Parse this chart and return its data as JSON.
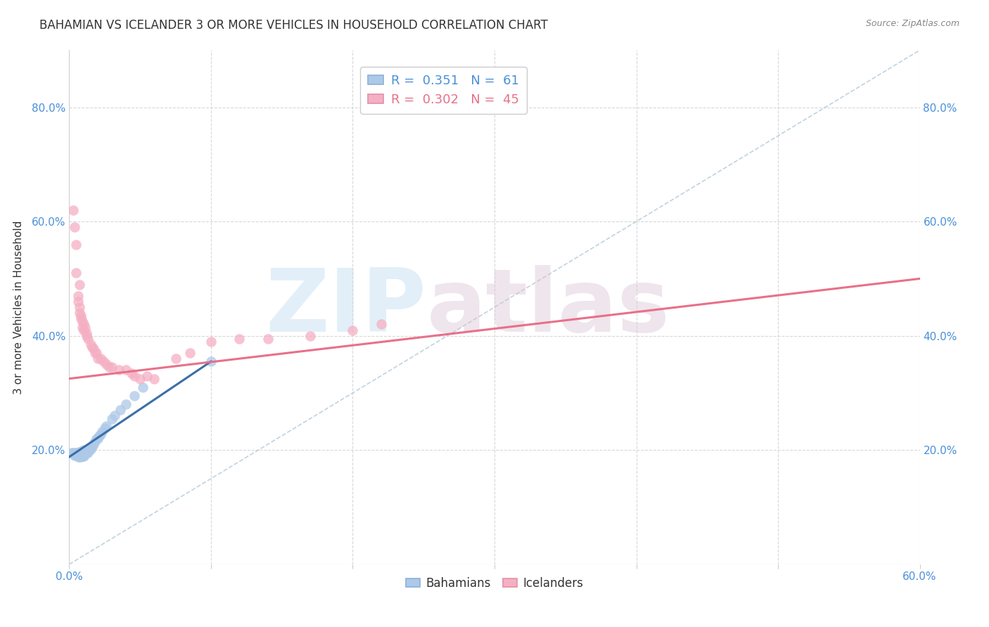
{
  "title": "BAHAMIAN VS ICELANDER 3 OR MORE VEHICLES IN HOUSEHOLD CORRELATION CHART",
  "source_text": "Source: ZipAtlas.com",
  "ylabel": "3 or more Vehicles in Household",
  "xlabel": "",
  "xlim": [
    0.0,
    0.6
  ],
  "ylim": [
    0.0,
    0.9
  ],
  "xtick_labels": [
    "0.0%",
    "",
    "",
    "",
    "",
    "",
    "60.0%"
  ],
  "xtick_values": [
    0.0,
    0.1,
    0.2,
    0.3,
    0.4,
    0.5,
    0.6
  ],
  "ytick_labels": [
    "20.0%",
    "40.0%",
    "60.0%",
    "80.0%"
  ],
  "ytick_values": [
    0.2,
    0.4,
    0.6,
    0.8
  ],
  "legend_entries": [
    {
      "label": "R =  0.351   N =  61",
      "color": "#adc9e8"
    },
    {
      "label": "R =  0.302   N =  45",
      "color": "#f5afc3"
    }
  ],
  "bahamians_color": "#adc9e8",
  "icelanders_color": "#f5afc3",
  "bahamians_edge_color": "#adc9e8",
  "icelanders_edge_color": "#f5afc3",
  "bahamians_line_color": "#3a6fa8",
  "icelanders_line_color": "#e8708a",
  "diagonal_color": "#b0c8d8",
  "background_color": "#ffffff",
  "grid_color": "#d8d8d8",
  "title_color": "#333333",
  "watermark_zip_color": "#c0ddf0",
  "watermark_atlas_color": "#d8c0d0",
  "bahamians_x": [
    0.002,
    0.003,
    0.004,
    0.004,
    0.005,
    0.005,
    0.005,
    0.005,
    0.006,
    0.006,
    0.006,
    0.006,
    0.007,
    0.007,
    0.007,
    0.007,
    0.007,
    0.007,
    0.008,
    0.008,
    0.008,
    0.008,
    0.008,
    0.008,
    0.008,
    0.009,
    0.009,
    0.009,
    0.009,
    0.01,
    0.01,
    0.01,
    0.01,
    0.01,
    0.01,
    0.011,
    0.011,
    0.012,
    0.012,
    0.013,
    0.013,
    0.014,
    0.015,
    0.015,
    0.016,
    0.017,
    0.018,
    0.019,
    0.02,
    0.021,
    0.022,
    0.023,
    0.025,
    0.026,
    0.03,
    0.032,
    0.036,
    0.04,
    0.046,
    0.052,
    0.1
  ],
  "bahamians_y": [
    0.195,
    0.196,
    0.19,
    0.192,
    0.193,
    0.194,
    0.195,
    0.196,
    0.188,
    0.19,
    0.192,
    0.194,
    0.188,
    0.19,
    0.192,
    0.193,
    0.195,
    0.197,
    0.188,
    0.19,
    0.192,
    0.193,
    0.195,
    0.196,
    0.198,
    0.189,
    0.191,
    0.193,
    0.195,
    0.189,
    0.191,
    0.193,
    0.195,
    0.197,
    0.2,
    0.193,
    0.196,
    0.196,
    0.2,
    0.196,
    0.2,
    0.2,
    0.202,
    0.205,
    0.205,
    0.21,
    0.215,
    0.22,
    0.22,
    0.225,
    0.228,
    0.232,
    0.238,
    0.242,
    0.255,
    0.26,
    0.27,
    0.28,
    0.295,
    0.31,
    0.355
  ],
  "icelanders_x": [
    0.003,
    0.004,
    0.005,
    0.005,
    0.006,
    0.006,
    0.007,
    0.007,
    0.007,
    0.008,
    0.008,
    0.009,
    0.009,
    0.01,
    0.01,
    0.011,
    0.012,
    0.012,
    0.013,
    0.015,
    0.016,
    0.017,
    0.018,
    0.019,
    0.02,
    0.022,
    0.024,
    0.026,
    0.028,
    0.03,
    0.035,
    0.04,
    0.044,
    0.046,
    0.05,
    0.055,
    0.06,
    0.075,
    0.085,
    0.1,
    0.12,
    0.14,
    0.17,
    0.2,
    0.22
  ],
  "icelanders_y": [
    0.62,
    0.59,
    0.56,
    0.51,
    0.47,
    0.46,
    0.45,
    0.44,
    0.49,
    0.435,
    0.43,
    0.425,
    0.415,
    0.42,
    0.41,
    0.415,
    0.4,
    0.405,
    0.395,
    0.385,
    0.38,
    0.378,
    0.37,
    0.37,
    0.36,
    0.36,
    0.355,
    0.35,
    0.345,
    0.345,
    0.34,
    0.34,
    0.335,
    0.33,
    0.325,
    0.33,
    0.325,
    0.36,
    0.37,
    0.39,
    0.395,
    0.395,
    0.4,
    0.41,
    0.42
  ],
  "bah_line_x": [
    0.0,
    0.1
  ],
  "bah_line_y": [
    0.188,
    0.355
  ],
  "ice_line_x": [
    0.0,
    0.6
  ],
  "ice_line_y": [
    0.325,
    0.5
  ],
  "diag_line_x": [
    0.0,
    0.6
  ],
  "diag_line_y": [
    0.0,
    0.9
  ],
  "minor_xtick_values": [
    0.1,
    0.2,
    0.3,
    0.4,
    0.5
  ]
}
